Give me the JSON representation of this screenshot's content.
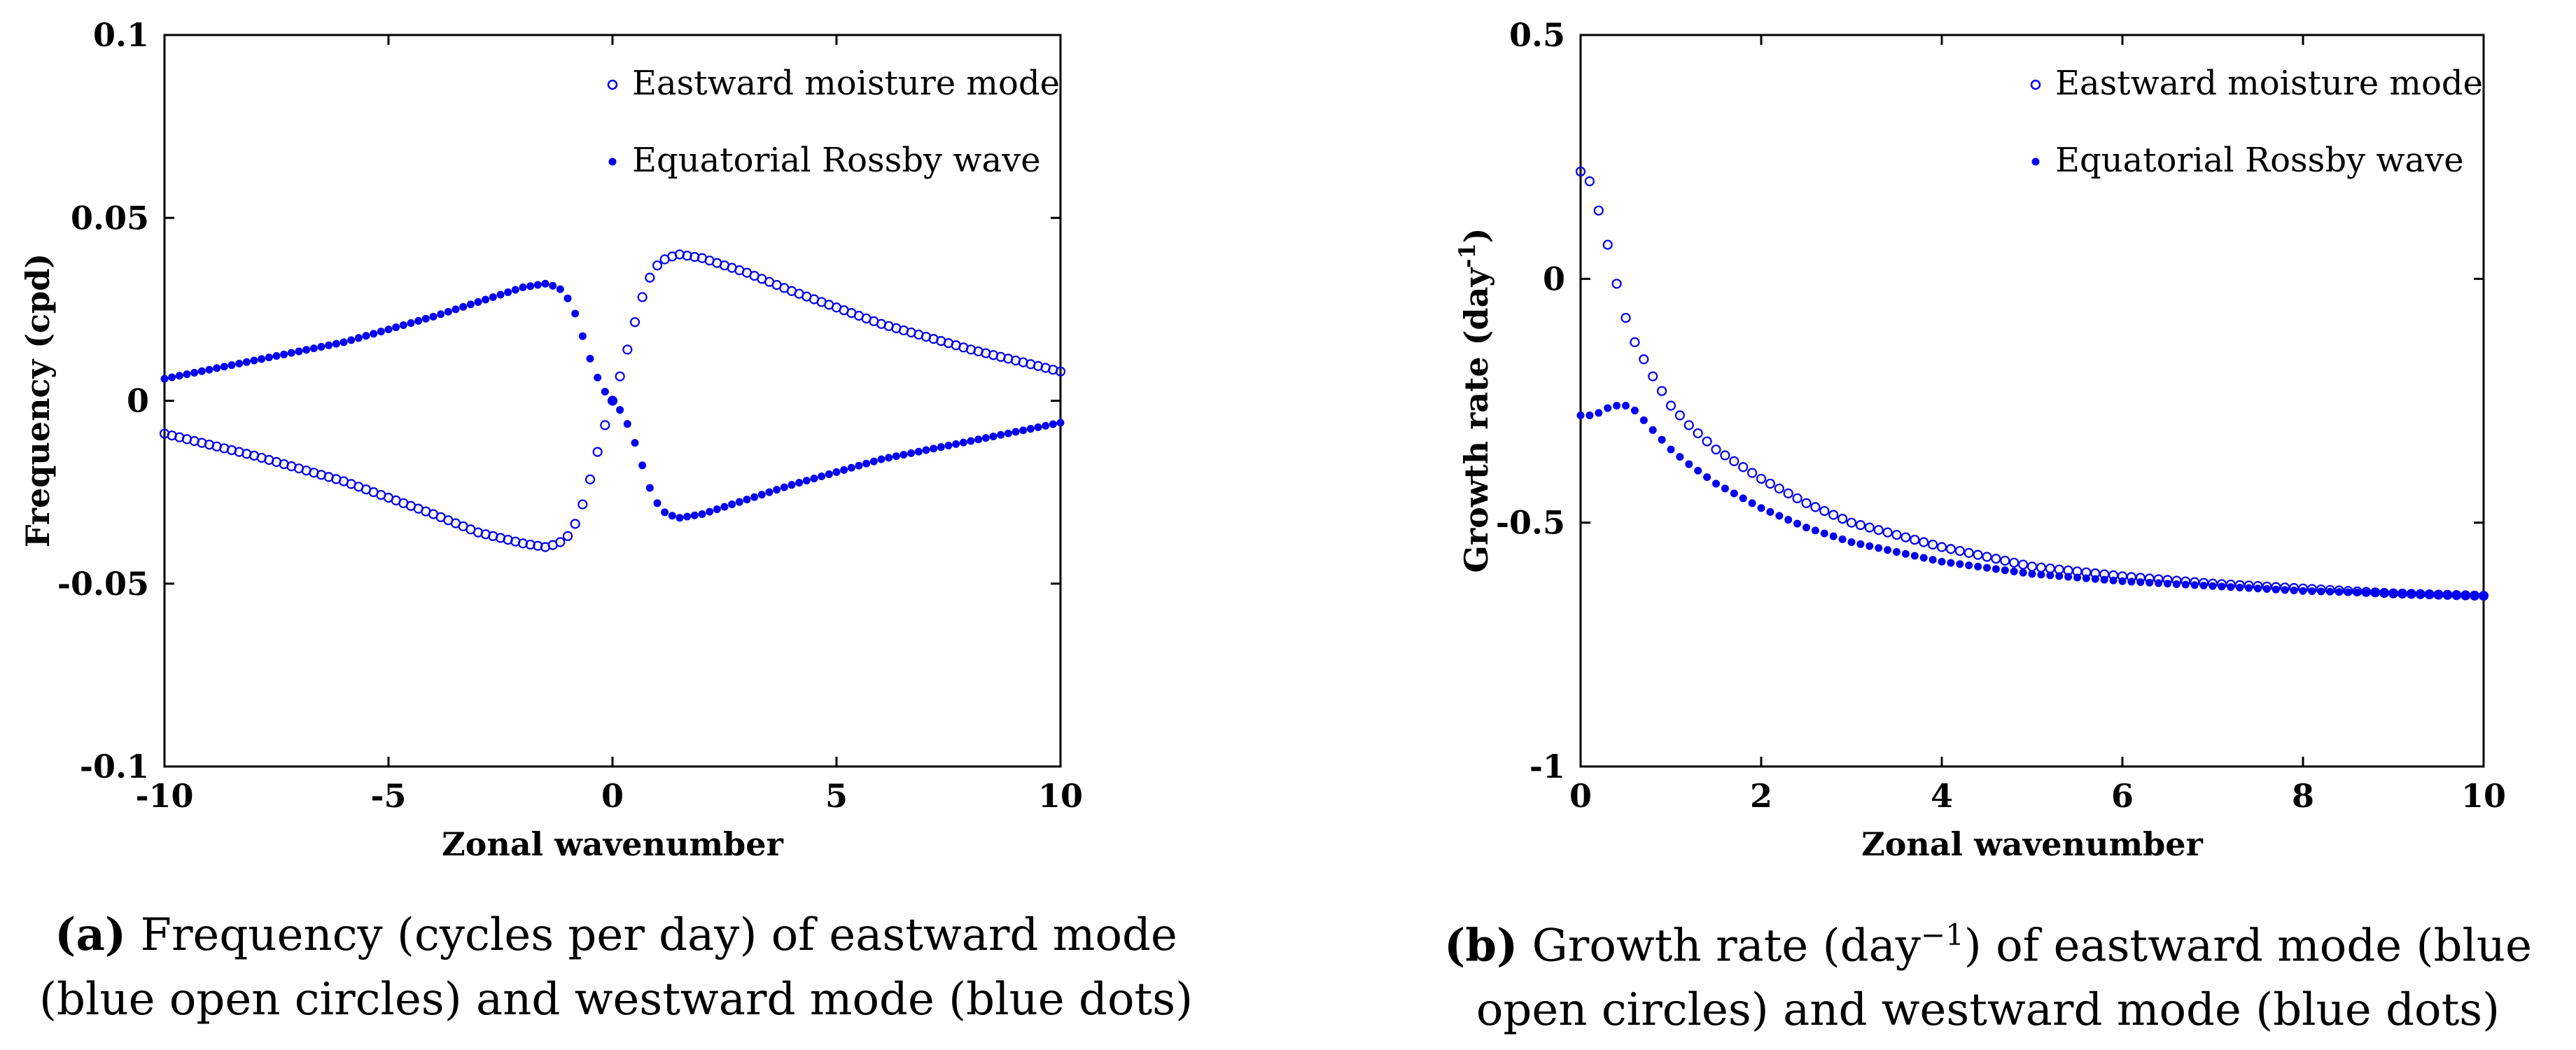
{
  "chart_data": [
    {
      "id": "a",
      "type": "scatter",
      "xlabel": "Zonal wavenumber",
      "ylabel": "Frequency (cpd)",
      "xlim": [
        -10,
        10
      ],
      "ylim": [
        -0.1,
        0.1
      ],
      "xticks": [
        "-10",
        "-5",
        "0",
        "5",
        "10"
      ],
      "yticks": [
        "-0.1",
        "-0.05",
        "0",
        "0.05",
        "0.1"
      ],
      "legend_position": "top-right",
      "series": [
        {
          "name": "Eastward moisture mode",
          "marker": "open-circle",
          "x": [
            -10,
            -8,
            -6,
            -4,
            -3,
            -2,
            -1.5,
            -1.2,
            -1,
            -0.8,
            -0.6,
            -0.4,
            -0.2,
            0,
            0.2,
            0.4,
            0.6,
            0.8,
            1,
            1.2,
            1.5,
            2,
            3,
            4,
            6,
            8,
            10
          ],
          "y": [
            -0.009,
            -0.015,
            -0.022,
            -0.031,
            -0.036,
            -0.039,
            -0.04,
            -0.039,
            -0.037,
            -0.033,
            -0.026,
            -0.017,
            -0.008,
            0.0,
            0.008,
            0.017,
            0.026,
            0.033,
            0.037,
            0.039,
            0.04,
            0.039,
            0.035,
            0.03,
            0.021,
            0.014,
            0.008
          ]
        },
        {
          "name": "Equatorial Rossby wave",
          "marker": "filled-dot",
          "x": [
            -10,
            -8,
            -6,
            -4,
            -3,
            -2,
            -1.5,
            -1.2,
            -1,
            -0.8,
            -0.6,
            -0.4,
            -0.2,
            0,
            0.2,
            0.4,
            0.6,
            0.8,
            1,
            1.2,
            1.5,
            2,
            3,
            4,
            6,
            8,
            10
          ],
          "y": [
            0.006,
            0.011,
            0.016,
            0.023,
            0.027,
            0.031,
            0.032,
            0.031,
            0.028,
            0.023,
            0.015,
            0.008,
            0.003,
            0.0,
            -0.003,
            -0.008,
            -0.015,
            -0.023,
            -0.028,
            -0.031,
            -0.032,
            -0.031,
            -0.027,
            -0.023,
            -0.016,
            -0.011,
            -0.006
          ]
        }
      ],
      "caption": {
        "label": "(a)",
        "line1": "Frequency (cycles per day) of eastward mode",
        "line2": "(blue open circles) and westward mode (blue dots)"
      }
    },
    {
      "id": "b",
      "type": "scatter",
      "xlabel": "Zonal wavenumber",
      "ylabel_base": "Growth rate (day",
      "ylabel_sup": "-1",
      "ylabel_end": ")",
      "xlim": [
        0,
        10
      ],
      "ylim": [
        -1,
        0.5
      ],
      "xticks": [
        "0",
        "2",
        "4",
        "6",
        "8",
        "10"
      ],
      "yticks": [
        "-1",
        "-0.5",
        "0",
        "0.5"
      ],
      "legend_position": "top-right",
      "series": [
        {
          "name": "Eastward moisture mode",
          "marker": "open-circle",
          "x": [
            0,
            0.1,
            0.2,
            0.3,
            0.4,
            0.5,
            0.6,
            0.8,
            1,
            1.2,
            1.5,
            2,
            2.5,
            3,
            4,
            5,
            6,
            7,
            8,
            9,
            10
          ],
          "y": [
            0.22,
            0.2,
            0.14,
            0.07,
            -0.01,
            -0.08,
            -0.13,
            -0.2,
            -0.26,
            -0.3,
            -0.35,
            -0.41,
            -0.46,
            -0.5,
            -0.55,
            -0.59,
            -0.61,
            -0.625,
            -0.635,
            -0.645,
            -0.65
          ]
        },
        {
          "name": "Equatorial Rossby wave",
          "marker": "filled-dot",
          "x": [
            0,
            0.1,
            0.2,
            0.3,
            0.4,
            0.5,
            0.6,
            0.8,
            1,
            1.2,
            1.5,
            2,
            2.5,
            3,
            4,
            5,
            6,
            7,
            8,
            9,
            10
          ],
          "y": [
            -0.28,
            -0.28,
            -0.275,
            -0.265,
            -0.26,
            -0.26,
            -0.27,
            -0.31,
            -0.35,
            -0.38,
            -0.42,
            -0.47,
            -0.51,
            -0.54,
            -0.58,
            -0.605,
            -0.62,
            -0.63,
            -0.64,
            -0.645,
            -0.65
          ]
        }
      ],
      "caption": {
        "label": "(b)",
        "line1_pre": "Growth rate (day",
        "line1_sup": "−1",
        "line1_post": ") of eastward mode (blue",
        "line2": "open circles) and westward mode (blue dots)"
      }
    }
  ],
  "colors": {
    "series": "#0000ee",
    "axis": "#000000"
  }
}
